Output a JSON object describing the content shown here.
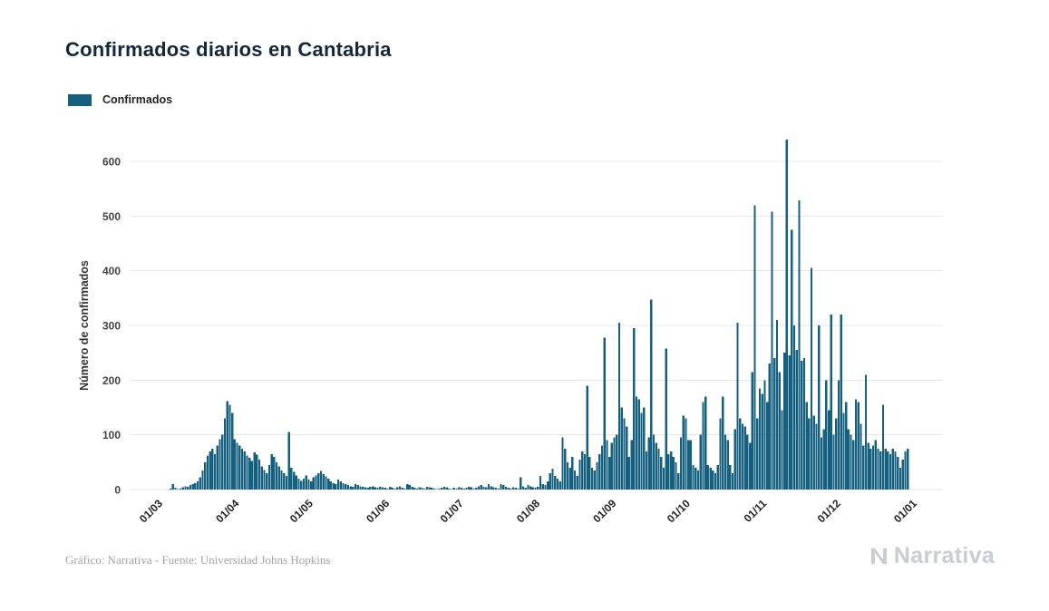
{
  "page": {
    "title": "Confirmados diarios en Cantabria",
    "footer_credit": "Gráfico: Narrativa - Fuente: Universidad Johns Hopkins",
    "brand": "Narrativa"
  },
  "legend": {
    "label": "Confirmados"
  },
  "colors": {
    "bar": "#15607f",
    "grid": "#e6e6e6",
    "axis_text": "#444444",
    "xtick_text": "#222222",
    "title_text": "#13293b",
    "footer_text": "#a3a3a3",
    "brand_text": "#c9cdd1"
  },
  "chart_data": {
    "type": "bar",
    "title": "Confirmados diarios en Cantabria",
    "series_name": "Confirmados",
    "xlabel": "",
    "ylabel": "Número de confirmados",
    "ylim": [
      0,
      650
    ],
    "yticks": [
      0,
      100,
      200,
      300,
      400,
      500,
      600
    ],
    "grid": "horizontal",
    "legend_position": "top-left",
    "x_start_date": "2020-03-01",
    "x_frequency": "daily",
    "xtick_labels": [
      "01/03",
      "01/04",
      "01/05",
      "01/06",
      "01/07",
      "01/08",
      "01/09",
      "01/10",
      "01/11",
      "01/12",
      "01/01"
    ],
    "xtick_day_indices": [
      0,
      31,
      61,
      92,
      122,
      153,
      184,
      214,
      245,
      275,
      306
    ],
    "values": [
      0,
      0,
      0,
      2,
      10,
      3,
      1,
      2,
      4,
      6,
      5,
      8,
      10,
      12,
      15,
      22,
      35,
      50,
      62,
      70,
      75,
      65,
      80,
      92,
      100,
      130,
      162,
      155,
      140,
      92,
      85,
      80,
      75,
      70,
      62,
      58,
      52,
      68,
      64,
      55,
      42,
      36,
      30,
      45,
      65,
      60,
      50,
      42,
      35,
      30,
      25,
      105,
      40,
      32,
      26,
      20,
      16,
      20,
      26,
      18,
      15,
      22,
      26,
      30,
      34,
      28,
      24,
      20,
      15,
      12,
      10,
      18,
      15,
      12,
      10,
      8,
      6,
      5,
      10,
      8,
      6,
      5,
      4,
      3,
      5,
      6,
      4,
      3,
      5,
      4,
      3,
      2,
      5,
      3,
      2,
      4,
      6,
      3,
      2,
      10,
      8,
      5,
      3,
      2,
      4,
      3,
      2,
      5,
      4,
      3,
      2,
      1,
      2,
      3,
      5,
      4,
      2,
      1,
      3,
      2,
      4,
      3,
      2,
      3,
      5,
      4,
      2,
      3,
      6,
      8,
      5,
      4,
      10,
      6,
      4,
      3,
      2,
      10,
      8,
      5,
      3,
      2,
      4,
      3,
      2,
      22,
      6,
      3,
      8,
      6,
      4,
      3,
      5,
      25,
      10,
      8,
      15,
      30,
      38,
      25,
      20,
      15,
      95,
      75,
      50,
      40,
      60,
      35,
      25,
      55,
      70,
      65,
      190,
      60,
      40,
      35,
      50,
      65,
      80,
      278,
      90,
      60,
      85,
      95,
      100,
      305,
      150,
      130,
      115,
      60,
      90,
      295,
      170,
      165,
      140,
      150,
      70,
      95,
      347,
      100,
      85,
      75,
      60,
      40,
      258,
      65,
      70,
      60,
      50,
      30,
      95,
      135,
      130,
      90,
      90,
      45,
      40,
      35,
      100,
      160,
      170,
      45,
      40,
      35,
      30,
      45,
      130,
      170,
      100,
      90,
      45,
      30,
      110,
      305,
      130,
      120,
      115,
      100,
      85,
      215,
      520,
      130,
      185,
      175,
      200,
      160,
      230,
      508,
      240,
      310,
      215,
      145,
      250,
      640,
      245,
      475,
      300,
      255,
      529,
      235,
      240,
      160,
      130,
      405,
      135,
      120,
      300,
      95,
      110,
      200,
      145,
      320,
      100,
      130,
      200,
      320,
      140,
      160,
      110,
      100,
      90,
      165,
      160,
      120,
      80,
      210,
      85,
      75,
      80,
      90,
      75,
      70,
      155,
      75,
      70,
      65,
      75,
      70,
      60,
      40,
      55,
      70,
      75,
      0,
      0,
      0
    ]
  }
}
